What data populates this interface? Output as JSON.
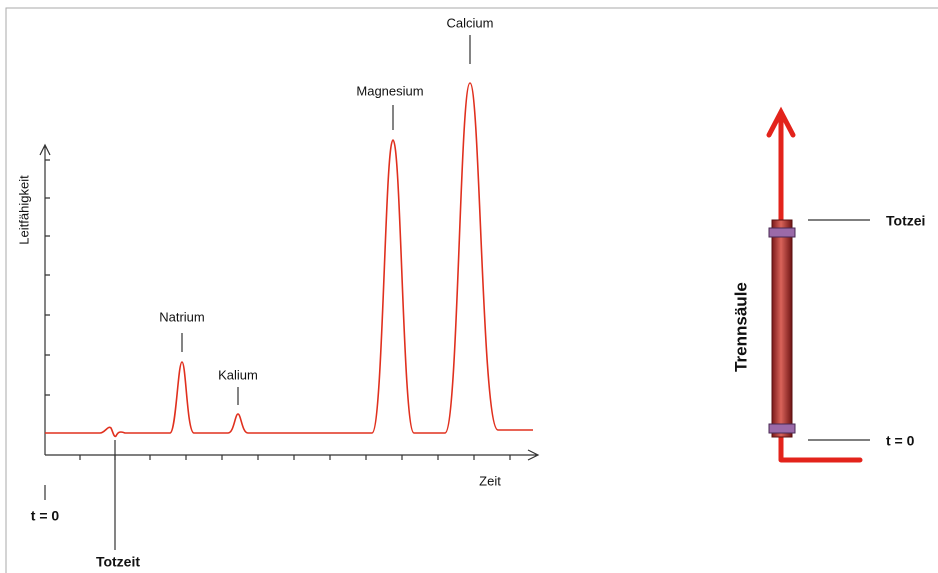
{
  "chromatogram": {
    "y_axis_label": "Leitfähigkeit",
    "x_axis_label": "Zeit",
    "peaks": [
      "Natrium",
      "Kalium",
      "Magnesium",
      "Calcium"
    ],
    "start_label": "t = 0",
    "dead_time_label": "Totzeit"
  },
  "column": {
    "label": "Trennsäule",
    "top_label": "Totzei",
    "bottom_label": "t = 0"
  }
}
